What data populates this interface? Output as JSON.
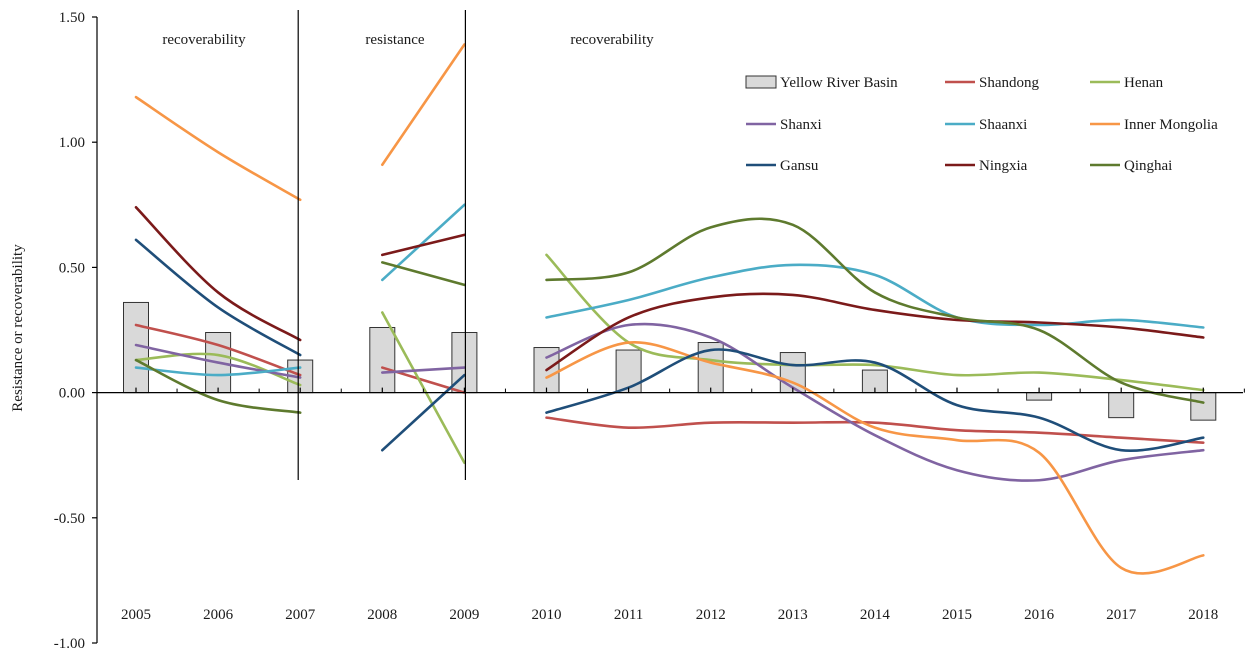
{
  "chart_data": {
    "type": "bar+line",
    "title": "",
    "xlabel": "",
    "ylabel": "Resistance or recoverability",
    "ylim": [
      -1.0,
      1.5
    ],
    "yticks": [
      {
        "value": 1.5,
        "label": "1.50"
      },
      {
        "value": 1.0,
        "label": "1.00"
      },
      {
        "value": 0.5,
        "label": "0.50"
      },
      {
        "value": 0.0,
        "label": "0.00"
      },
      {
        "value": -0.5,
        "label": "-0.50"
      },
      {
        "value": -1.0,
        "label": "-1.00"
      }
    ],
    "categories": [
      "2005",
      "2006",
      "2007",
      "2008",
      "2009",
      "2010",
      "2011",
      "2012",
      "2013",
      "2014",
      "2015",
      "2016",
      "2017",
      "2018"
    ],
    "segments": [
      {
        "label": "recoverability",
        "years": [
          "2005",
          "2007"
        ]
      },
      {
        "label": "resistance",
        "years": [
          "2008",
          "2009"
        ]
      },
      {
        "label": "recoverability",
        "years": [
          "2010",
          "2018"
        ]
      }
    ],
    "bar_series": {
      "name": "Yellow River Basin",
      "values": [
        0.36,
        0.24,
        0.13,
        0.26,
        0.24,
        0.18,
        0.17,
        0.2,
        0.16,
        0.09,
        0.0,
        -0.03,
        -0.1,
        -0.11
      ],
      "color": "#d9d9d9"
    },
    "series": [
      {
        "name": "Shandong",
        "color": "#c0504d",
        "points": [
          [
            0,
            0.27
          ],
          [
            1,
            0.19
          ],
          [
            2,
            0.07
          ],
          [
            3,
            0.1
          ],
          [
            4,
            0.0
          ],
          [
            5,
            -0.1
          ],
          [
            6,
            -0.14
          ],
          [
            7,
            -0.12
          ],
          [
            8,
            -0.12
          ],
          [
            9,
            -0.12
          ],
          [
            10,
            -0.15
          ],
          [
            11,
            -0.16
          ],
          [
            12,
            -0.18
          ],
          [
            13,
            -0.2
          ]
        ]
      },
      {
        "name": "Henan",
        "color": "#9bbb59",
        "points": [
          [
            0,
            0.13
          ],
          [
            1,
            0.15
          ],
          [
            2,
            0.03
          ],
          [
            3,
            0.32
          ],
          [
            4,
            -0.28
          ],
          [
            5,
            0.55
          ],
          [
            6,
            0.2
          ],
          [
            7,
            0.13
          ],
          [
            8,
            0.11
          ],
          [
            9,
            0.11
          ],
          [
            10,
            0.07
          ],
          [
            11,
            0.08
          ],
          [
            12,
            0.05
          ],
          [
            13,
            0.01
          ]
        ]
      },
      {
        "name": "Shanxi",
        "color": "#8064a2",
        "points": [
          [
            0,
            0.19
          ],
          [
            1,
            0.12
          ],
          [
            2,
            0.06
          ],
          [
            3,
            0.08
          ],
          [
            4,
            0.1
          ],
          [
            5,
            0.14
          ],
          [
            6,
            0.27
          ],
          [
            7,
            0.22
          ],
          [
            8,
            0.02
          ],
          [
            9,
            -0.17
          ],
          [
            10,
            -0.31
          ],
          [
            11,
            -0.35
          ],
          [
            12,
            -0.27
          ],
          [
            13,
            -0.23
          ]
        ]
      },
      {
        "name": "Shaanxi",
        "color": "#4bacc6",
        "points": [
          [
            0,
            0.1
          ],
          [
            1,
            0.07
          ],
          [
            2,
            0.1
          ],
          [
            3,
            0.45
          ],
          [
            4,
            0.75
          ],
          [
            5,
            0.3
          ],
          [
            6,
            0.37
          ],
          [
            7,
            0.46
          ],
          [
            8,
            0.51
          ],
          [
            9,
            0.47
          ],
          [
            10,
            0.3
          ],
          [
            11,
            0.27
          ],
          [
            12,
            0.29
          ],
          [
            13,
            0.26
          ]
        ]
      },
      {
        "name": "Inner Mongolia",
        "color": "#f79646",
        "points": [
          [
            0,
            1.18
          ],
          [
            1,
            0.96
          ],
          [
            2,
            0.77
          ],
          [
            3,
            0.91
          ],
          [
            4,
            1.39
          ],
          [
            5,
            0.06
          ],
          [
            6,
            0.2
          ],
          [
            7,
            0.12
          ],
          [
            8,
            0.04
          ],
          [
            9,
            -0.14
          ],
          [
            10,
            -0.19
          ],
          [
            11,
            -0.24
          ],
          [
            12,
            -0.7
          ],
          [
            13,
            -0.65
          ]
        ]
      },
      {
        "name": "Gansu",
        "color": "#1f4e79",
        "points": [
          [
            0,
            0.61
          ],
          [
            1,
            0.34
          ],
          [
            2,
            0.15
          ],
          [
            3,
            -0.23
          ],
          [
            4,
            0.07
          ],
          [
            5,
            -0.08
          ],
          [
            6,
            0.02
          ],
          [
            7,
            0.17
          ],
          [
            8,
            0.11
          ],
          [
            9,
            0.12
          ],
          [
            10,
            -0.05
          ],
          [
            11,
            -0.1
          ],
          [
            12,
            -0.23
          ],
          [
            13,
            -0.18
          ]
        ]
      },
      {
        "name": "Ningxia",
        "color": "#7b1a1a",
        "points": [
          [
            0,
            0.74
          ],
          [
            1,
            0.4
          ],
          [
            2,
            0.21
          ],
          [
            3,
            0.55
          ],
          [
            4,
            0.63
          ],
          [
            5,
            0.09
          ],
          [
            6,
            0.3
          ],
          [
            7,
            0.38
          ],
          [
            8,
            0.39
          ],
          [
            9,
            0.33
          ],
          [
            10,
            0.29
          ],
          [
            11,
            0.28
          ],
          [
            12,
            0.26
          ],
          [
            13,
            0.22
          ]
        ]
      },
      {
        "name": "Qinghai",
        "color": "#5e7a2e",
        "points": [
          [
            0,
            0.13
          ],
          [
            1,
            -0.03
          ],
          [
            2,
            -0.08
          ],
          [
            3,
            0.52
          ],
          [
            4,
            0.43
          ],
          [
            5,
            0.45
          ],
          [
            6,
            0.48
          ],
          [
            7,
            0.66
          ],
          [
            8,
            0.67
          ],
          [
            9,
            0.4
          ],
          [
            10,
            0.3
          ],
          [
            11,
            0.25
          ],
          [
            12,
            0.04
          ],
          [
            13,
            -0.04
          ]
        ]
      }
    ],
    "legend_position": "top-right",
    "grid": false
  }
}
